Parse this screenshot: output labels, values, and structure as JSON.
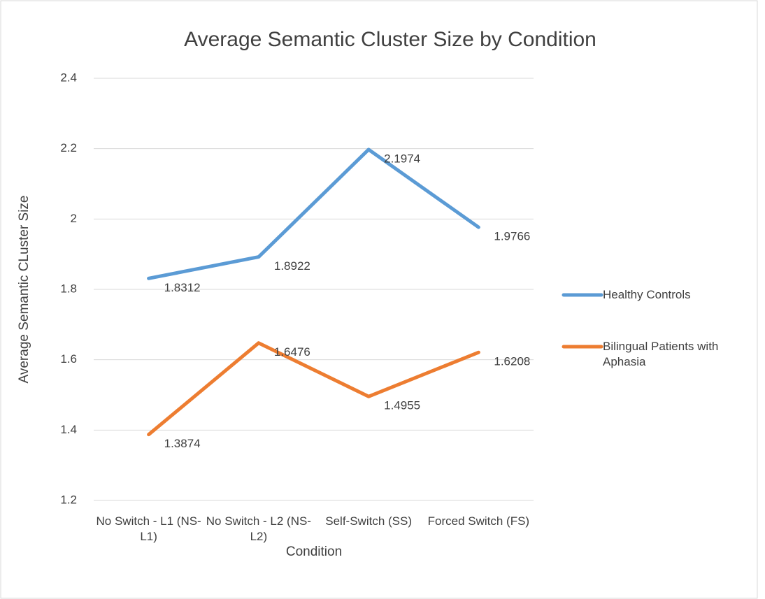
{
  "chart_data": {
    "type": "line",
    "title": "Average Semantic Cluster Size by Condition",
    "x_label": "Condition",
    "y_label": "Average Semantic CLuster Size",
    "categories": [
      "No Switch - L1 (NS-L1)",
      "No Switch - L2 (NS-L2)",
      "Self-Switch (SS)",
      "Forced Switch (FS)"
    ],
    "series": [
      {
        "name": "Healthy Controls",
        "color": "#5b9bd5",
        "values": [
          1.8312,
          1.8922,
          2.1974,
          1.9766
        ]
      },
      {
        "name": "Bilingual Patients with Aphasia",
        "color": "#ed7d31",
        "values": [
          1.3874,
          1.6476,
          1.4955,
          1.6208
        ]
      }
    ],
    "ylim": [
      1.2,
      2.4
    ],
    "yticks": [
      1.2,
      1.4,
      1.6,
      1.8,
      2,
      2.2,
      2.4
    ],
    "grid": true,
    "legend": "right"
  }
}
